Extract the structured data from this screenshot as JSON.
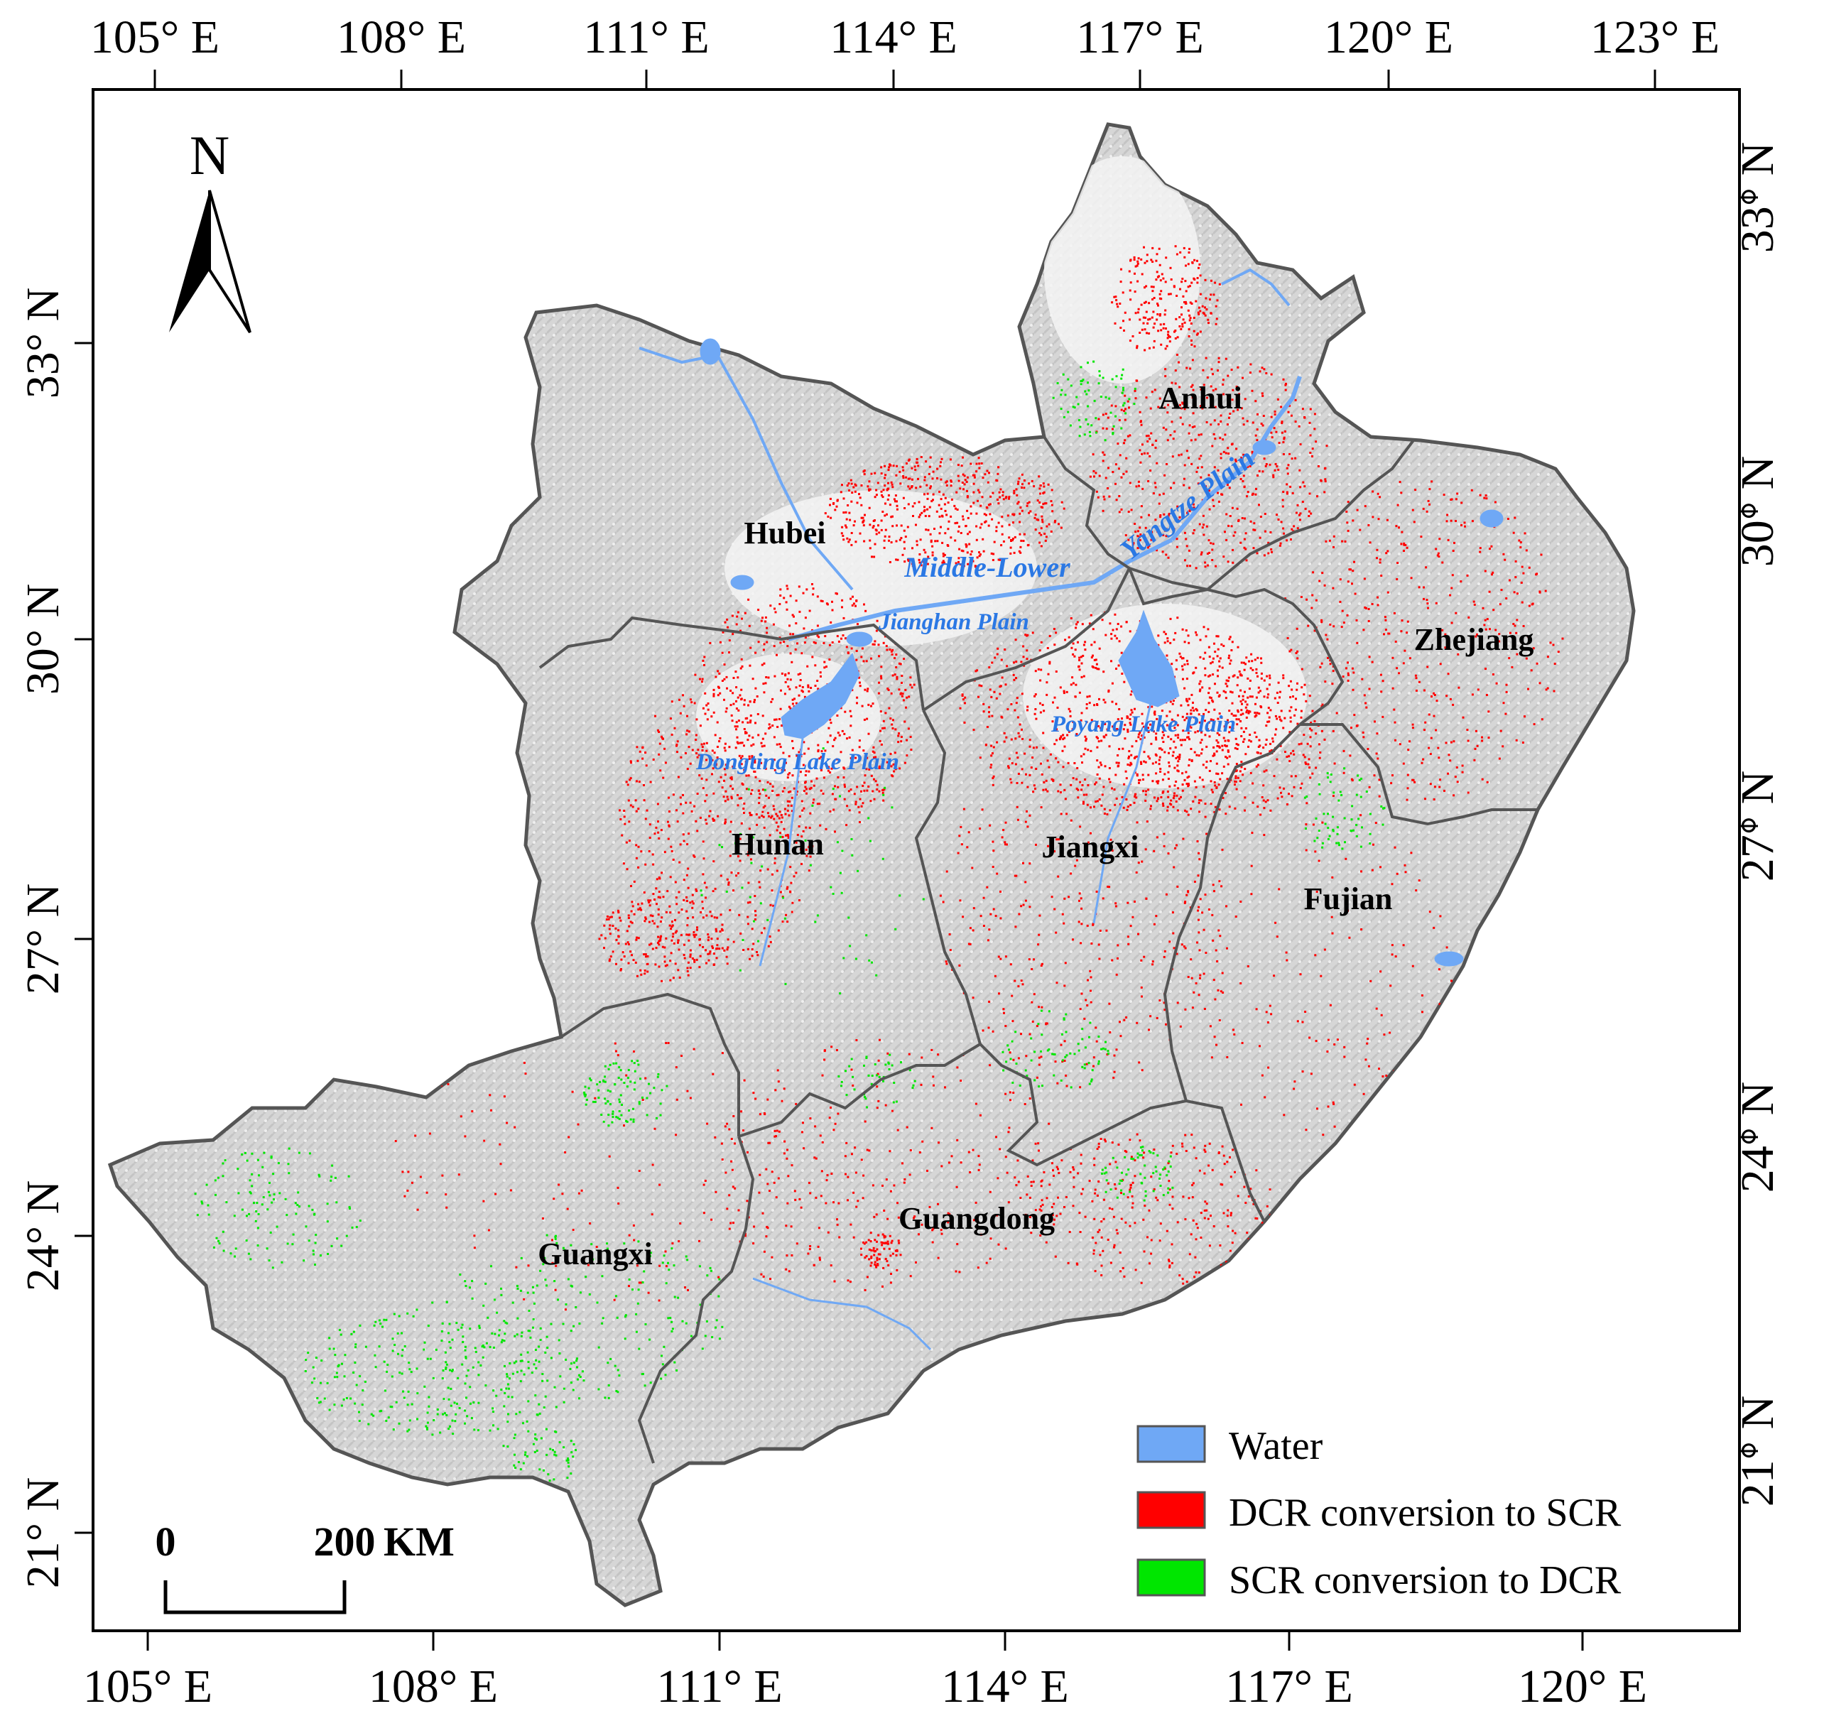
{
  "map": {
    "top_lon_labels": [
      "105° E",
      "108° E",
      "111° E",
      "114° E",
      "117° E",
      "120° E",
      "123° E"
    ],
    "bottom_lon_labels": [
      "105° E",
      "108° E",
      "111° E",
      "114° E",
      "117° E",
      "120° E"
    ],
    "left_lat_labels": [
      "33° N",
      "30° N",
      "27° N",
      "24° N",
      "21° N"
    ],
    "right_lat_labels": [
      "33° N",
      "30° N",
      "27° N",
      "24° N",
      "21° N"
    ],
    "north_arrow_label": "N",
    "scale_bar": {
      "start_label": "0",
      "end_label": "200",
      "unit_label": "KM"
    },
    "provinces": [
      {
        "id": "hubei",
        "label": "Hubei"
      },
      {
        "id": "anhui",
        "label": "Anhui"
      },
      {
        "id": "zhejiang",
        "label": "Zhejiang"
      },
      {
        "id": "hunan",
        "label": "Hunan"
      },
      {
        "id": "jiangxi",
        "label": "Jiangxi"
      },
      {
        "id": "fujian",
        "label": "Fujian"
      },
      {
        "id": "guangxi",
        "label": "Guangxi"
      },
      {
        "id": "guangdong",
        "label": "Guangdong"
      }
    ],
    "features": {
      "middle_lower": "Middle-Lower",
      "yangtze_plain": "Yangtze Plain",
      "jianghan_plain": "Jianghan Plain",
      "poyang_lake_plain": "Poyang Lake Plain",
      "dongting_lake_plain": "Dongting Lake Plain"
    },
    "legend": [
      {
        "label": "Water",
        "color": "#6fa8f5"
      },
      {
        "label": "DCR conversion to SCR",
        "color": "#ff0000"
      },
      {
        "label": "SCR conversion to DCR",
        "color": "#00e600"
      }
    ],
    "colors": {
      "land": "#d8d8d8",
      "border": "#555555",
      "water": "#6fa8f5",
      "dcr_to_scr": "#ff0000",
      "scr_to_dcr": "#00e600"
    }
  }
}
